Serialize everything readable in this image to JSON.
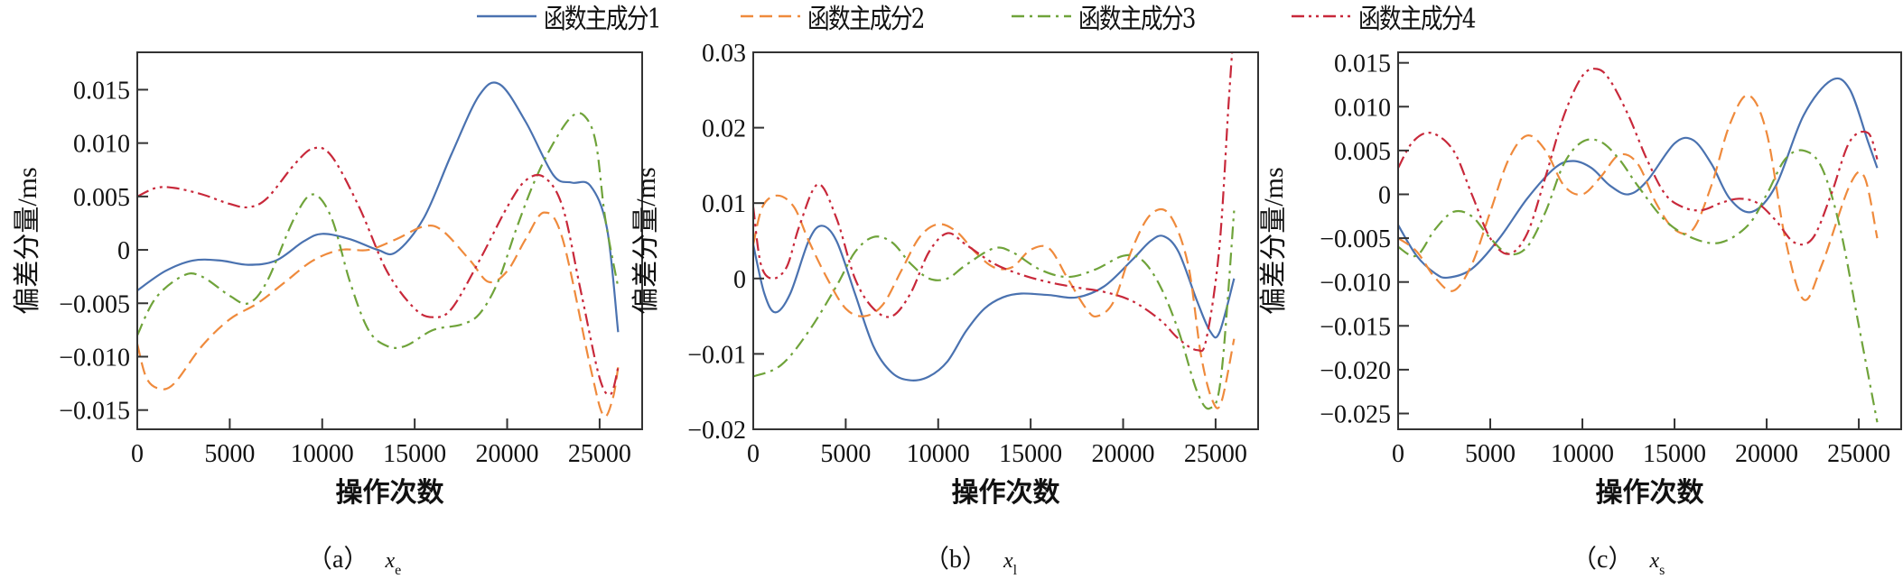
{
  "figure": {
    "legend": [
      {
        "label": "函数主成分1",
        "color": "#4a72b0",
        "dash": "",
        "style": "solid"
      },
      {
        "label": "函数主成分2",
        "color": "#ef8a3c",
        "dash": "14,7",
        "style": "dashed"
      },
      {
        "label": "函数主成分3",
        "color": "#6fa33a",
        "dash": "14,6,3,6",
        "style": "dash-dot"
      },
      {
        "label": "函数主成分4",
        "color": "#c8283a",
        "dash": "14,5,3,5,3,5",
        "style": "dash-dot-dot"
      }
    ],
    "panels": [
      {
        "caption": "（a）",
        "var": "x",
        "sub": "e"
      },
      {
        "caption": "（b）",
        "var": "x",
        "sub": "l"
      },
      {
        "caption": "（c）",
        "var": "x",
        "sub": "s"
      }
    ]
  },
  "chart_data": [
    {
      "type": "line",
      "title": "(a) x_e",
      "xlabel": "操作次数",
      "ylabel": "偏差分量/ms",
      "xlim": [
        0,
        27300
      ],
      "ylim": [
        -0.0168,
        0.0185
      ],
      "xticks": [
        0,
        5000,
        10000,
        15000,
        20000,
        25000
      ],
      "xtick_labels": [
        "0",
        "5000",
        "10000",
        "15000",
        "20000",
        "25000"
      ],
      "yticks": [
        -0.015,
        -0.01,
        -0.005,
        0,
        0.005,
        0.01,
        0.015
      ],
      "ytick_labels": [
        "−0.015",
        "−0.010",
        "−0.005",
        "0",
        "0.005",
        "0.010",
        "0.015"
      ],
      "grid": false,
      "legend_position": "top",
      "series": [
        {
          "name": "函数主成分1",
          "x": [
            0,
            1500,
            3000,
            4500,
            6000,
            7500,
            9000,
            10000,
            11500,
            13000,
            14000,
            15500,
            17000,
            18500,
            19600,
            21000,
            22500,
            23500,
            24500,
            25400,
            26000
          ],
          "y": [
            -0.0038,
            -0.002,
            -0.001,
            -0.001,
            -0.0014,
            -0.001,
            0.0008,
            0.0015,
            0.001,
            0.0,
            -0.0002,
            0.003,
            0.009,
            0.0145,
            0.0155,
            0.012,
            0.007,
            0.0063,
            0.006,
            0.002,
            -0.0077
          ]
        },
        {
          "name": "函数主成分2",
          "x": [
            0,
            500,
            1200,
            2000,
            3500,
            5000,
            6500,
            8000,
            9500,
            11000,
            12500,
            14000,
            15500,
            16500,
            18000,
            19000,
            20000,
            21000,
            22000,
            23000,
            24500,
            25200,
            25700,
            26000
          ],
          "y": [
            -0.0088,
            -0.012,
            -0.013,
            -0.0125,
            -0.009,
            -0.0065,
            -0.005,
            -0.003,
            -0.001,
            0.0,
            0.0,
            0.001,
            0.0022,
            0.0018,
            -0.001,
            -0.003,
            -0.002,
            0.001,
            0.0035,
            0.001,
            -0.011,
            -0.0155,
            -0.014,
            -0.011
          ]
        },
        {
          "name": "函数主成分3",
          "x": [
            0,
            1000,
            2500,
            3500,
            5000,
            6000,
            7000,
            8500,
            9500,
            10500,
            11500,
            12500,
            13500,
            14500,
            16000,
            17500,
            18500,
            19500,
            20500,
            21500,
            22500,
            23500,
            24200,
            24800,
            25300,
            26000
          ],
          "y": [
            -0.008,
            -0.0045,
            -0.0024,
            -0.0025,
            -0.0043,
            -0.005,
            -0.003,
            0.003,
            0.0052,
            0.003,
            -0.003,
            -0.0075,
            -0.009,
            -0.009,
            -0.0075,
            -0.007,
            -0.006,
            -0.003,
            0.002,
            0.0065,
            0.01,
            0.0125,
            0.0125,
            0.01,
            0.003,
            -0.0035
          ]
        },
        {
          "name": "函数主成分4",
          "x": [
            0,
            1000,
            2000,
            3500,
            5000,
            6000,
            7000,
            8500,
            9500,
            10500,
            12000,
            13500,
            15000,
            16000,
            17000,
            18500,
            20000,
            21000,
            22000,
            23000,
            24000,
            25000,
            25600,
            26000
          ],
          "y": [
            0.005,
            0.0058,
            0.0058,
            0.0052,
            0.0043,
            0.004,
            0.0048,
            0.008,
            0.0095,
            0.0088,
            0.004,
            -0.002,
            -0.0055,
            -0.0063,
            -0.0055,
            -0.001,
            0.004,
            0.0065,
            0.0068,
            0.004,
            -0.004,
            -0.012,
            -0.0135,
            -0.011
          ]
        }
      ]
    },
    {
      "type": "line",
      "title": "(b) x_l",
      "xlabel": "操作次数",
      "ylabel": "偏差分量/ms",
      "xlim": [
        0,
        27300
      ],
      "ylim": [
        -0.02,
        0.03
      ],
      "xticks": [
        0,
        5000,
        10000,
        15000,
        20000,
        25000
      ],
      "xtick_labels": [
        "0",
        "5000",
        "10000",
        "15000",
        "20000",
        "25000"
      ],
      "yticks": [
        -0.02,
        -0.01,
        0,
        0.01,
        0.02,
        0.03
      ],
      "ytick_labels": [
        "−0.02",
        "−0.01",
        "0",
        "0.01",
        "0.02",
        "0.03"
      ],
      "grid": false,
      "legend_position": "top",
      "series": [
        {
          "name": "函数主成分1",
          "x": [
            0,
            600,
            1200,
            2000,
            3000,
            3700,
            4500,
            5500,
            6500,
            7500,
            8500,
            9500,
            10500,
            11500,
            12500,
            13500,
            14500,
            16000,
            17500,
            19000,
            20500,
            21500,
            22200,
            23000,
            24000,
            24700,
            25200,
            26000
          ],
          "y": [
            0.0045,
            -0.002,
            -0.0045,
            -0.002,
            0.005,
            0.007,
            0.005,
            -0.002,
            -0.009,
            -0.0125,
            -0.0135,
            -0.013,
            -0.011,
            -0.007,
            -0.004,
            -0.0025,
            -0.002,
            -0.0022,
            -0.0025,
            -0.001,
            0.0025,
            0.005,
            0.0056,
            0.0035,
            -0.003,
            -0.007,
            -0.0072,
            0.0
          ]
        },
        {
          "name": "函数主成分2",
          "x": [
            0,
            500,
            1300,
            2200,
            3000,
            4000,
            5000,
            6000,
            7000,
            8000,
            9000,
            10000,
            11000,
            12000,
            13000,
            14000,
            15000,
            16000,
            17000,
            18000,
            18600,
            19500,
            20500,
            21500,
            22500,
            23500,
            24200,
            24800,
            25300,
            26000
          ],
          "y": [
            0.0045,
            0.0095,
            0.011,
            0.0095,
            0.005,
            0.0,
            -0.004,
            -0.005,
            -0.0035,
            0.001,
            0.0055,
            0.0072,
            0.0062,
            0.0035,
            0.0015,
            0.0015,
            0.0038,
            0.004,
            0.0,
            -0.004,
            -0.005,
            -0.003,
            0.004,
            0.0085,
            0.0085,
            0.002,
            -0.01,
            -0.016,
            -0.0165,
            -0.008
          ]
        },
        {
          "name": "函数主成分3",
          "x": [
            0,
            1500,
            3000,
            4500,
            5500,
            6500,
            7500,
            8500,
            9500,
            10500,
            11500,
            13000,
            14000,
            15500,
            17000,
            18500,
            20000,
            21000,
            22000,
            23000,
            24000,
            24700,
            25300,
            26000
          ],
          "y": [
            -0.013,
            -0.0115,
            -0.007,
            -0.001,
            0.0035,
            0.0055,
            0.0048,
            0.002,
            0.0,
            0.0,
            0.0018,
            0.004,
            0.0035,
            0.0012,
            0.0002,
            0.0012,
            0.003,
            0.0025,
            -0.001,
            -0.007,
            -0.015,
            -0.0172,
            -0.013,
            0.009
          ]
        },
        {
          "name": "函数主成分4",
          "x": [
            0,
            400,
            1000,
            1800,
            2500,
            3500,
            4500,
            5500,
            6500,
            7500,
            8500,
            9500,
            10500,
            11500,
            13000,
            14500,
            16000,
            17500,
            19000,
            20500,
            22000,
            23000,
            24000,
            24500,
            25200,
            25700,
            26000
          ],
          "y": [
            0.0095,
            0.002,
            0.0,
            0.0015,
            0.007,
            0.0125,
            0.008,
            0.0,
            -0.004,
            -0.005,
            -0.002,
            0.0035,
            0.006,
            0.0045,
            0.002,
            0.0005,
            -0.0005,
            -0.0012,
            -0.0018,
            -0.003,
            -0.0055,
            -0.008,
            -0.0095,
            -0.008,
            0.004,
            0.023,
            0.034
          ]
        }
      ]
    },
    {
      "type": "line",
      "title": "(c) x_s",
      "xlabel": "操作次数",
      "ylabel": "偏差分量/ms",
      "xlim": [
        0,
        27300
      ],
      "ylim": [
        -0.0268,
        0.0162
      ],
      "xticks": [
        0,
        5000,
        10000,
        15000,
        20000,
        25000
      ],
      "xtick_labels": [
        "0",
        "5000",
        "10000",
        "15000",
        "20000",
        "25000"
      ],
      "yticks": [
        -0.025,
        -0.02,
        -0.015,
        -0.01,
        -0.005,
        0,
        0.005,
        0.01,
        0.015
      ],
      "ytick_labels": [
        "−0.025",
        "−0.020",
        "−0.015",
        "−0.010",
        "−0.005",
        "0",
        "0.005",
        "0.010",
        "0.015"
      ],
      "grid": false,
      "legend_position": "top",
      "series": [
        {
          "name": "函数主成分1",
          "x": [
            0,
            1000,
            2000,
            2700,
            4000,
            5500,
            7000,
            8500,
            9500,
            10500,
            11500,
            12500,
            13500,
            15000,
            16000,
            17000,
            18000,
            19200,
            20500,
            22000,
            23500,
            24500,
            25500,
            26000
          ],
          "y": [
            -0.0035,
            -0.007,
            -0.009,
            -0.0095,
            -0.0085,
            -0.005,
            -0.0005,
            0.003,
            0.0038,
            0.003,
            0.001,
            0.0,
            0.0015,
            0.0058,
            0.0062,
            0.0035,
            -0.0005,
            -0.002,
            0.001,
            0.009,
            0.013,
            0.012,
            0.006,
            0.003
          ]
        },
        {
          "name": "函数主成分2",
          "x": [
            0,
            1000,
            2000,
            3000,
            4000,
            5000,
            6000,
            7000,
            8000,
            9000,
            10000,
            11000,
            12000,
            13000,
            14000,
            15000,
            16000,
            17000,
            18000,
            19000,
            20000,
            21000,
            22000,
            23000,
            24500,
            25300,
            26000
          ],
          "y": [
            -0.005,
            -0.0065,
            -0.0095,
            -0.011,
            -0.008,
            -0.002,
            0.004,
            0.0067,
            0.005,
            0.001,
            0.0,
            0.002,
            0.0045,
            0.0035,
            -0.001,
            -0.004,
            -0.004,
            0.001,
            0.008,
            0.0113,
            0.007,
            -0.005,
            -0.012,
            -0.008,
            0.001,
            0.002,
            -0.005
          ]
        },
        {
          "name": "函数主成分3",
          "x": [
            0,
            1000,
            2000,
            3000,
            4000,
            5000,
            6000,
            7000,
            8000,
            9000,
            10000,
            11000,
            12000,
            13000,
            14500,
            16000,
            17500,
            19000,
            20000,
            21000,
            22000,
            23000,
            24000,
            25000,
            26000
          ],
          "y": [
            -0.006,
            -0.007,
            -0.004,
            -0.002,
            -0.0025,
            -0.005,
            -0.0068,
            -0.006,
            -0.002,
            0.0035,
            0.006,
            0.006,
            0.004,
            0.001,
            -0.003,
            -0.005,
            -0.0055,
            -0.0035,
            0.0,
            0.004,
            0.005,
            0.003,
            -0.004,
            -0.015,
            -0.026
          ]
        },
        {
          "name": "函数主成分4",
          "x": [
            0,
            800,
            1800,
            3000,
            4000,
            5000,
            6000,
            7000,
            8000,
            9000,
            10000,
            10800,
            11500,
            12500,
            13500,
            14500,
            15500,
            16500,
            17500,
            18500,
            19500,
            20500,
            21500,
            22500,
            23500,
            24500,
            25500,
            26000
          ],
          "y": [
            0.003,
            0.006,
            0.007,
            0.005,
            0.0,
            -0.005,
            -0.0068,
            -0.0045,
            0.002,
            0.009,
            0.0135,
            0.0143,
            0.013,
            0.009,
            0.004,
            0.0,
            -0.0015,
            -0.0018,
            -0.001,
            -0.0005,
            -0.001,
            -0.003,
            -0.0055,
            -0.005,
            0.0,
            0.006,
            0.007,
            0.004
          ]
        }
      ]
    }
  ]
}
